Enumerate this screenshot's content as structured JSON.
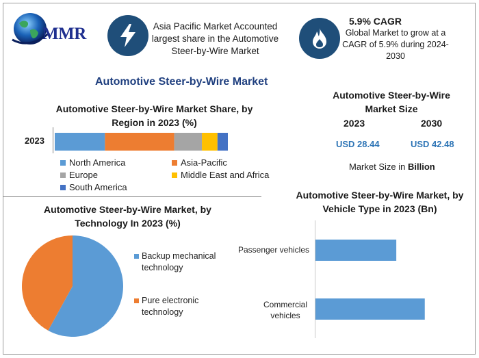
{
  "brand": {
    "name": "MMR"
  },
  "highlights": {
    "region": "Asia Pacific Market Accounted largest share in the Automotive Steer-by-Wire Market",
    "cagr_title": "5.9% CAGR",
    "cagr_text": "Global Market to grow at a CAGR of 5.9% during 2024-2030"
  },
  "main_title": "Automotive Steer-by-Wire Market",
  "market_size": {
    "title": "Automotive Steer-by-Wire Market Size",
    "year1": "2023",
    "year2": "2030",
    "value1": "USD 28.44",
    "value2": "USD 42.48",
    "unit_prefix": "Market Size in ",
    "unit_bold": "Billion"
  },
  "colors": {
    "north_america": "#5b9bd5",
    "asia_pacific": "#ed7d31",
    "europe": "#a5a5a5",
    "middle_east_africa": "#ffc000",
    "south_america": "#4472c4",
    "icon_bg": "#1f4e79",
    "title_blue": "#1f3f7f"
  },
  "chart_data": [
    {
      "type": "bar",
      "orientation": "horizontal",
      "stacked": true,
      "title": "Automotive Steer-by-Wire Market Share, by Region in 2023 (%)",
      "categories": [
        "2023"
      ],
      "series": [
        {
          "name": "North America",
          "values": [
            29
          ],
          "color": "#5b9bd5"
        },
        {
          "name": "Asia-Pacific",
          "values": [
            40
          ],
          "color": "#ed7d31"
        },
        {
          "name": "Europe",
          "values": [
            16
          ],
          "color": "#a5a5a5"
        },
        {
          "name": "Middle East and Africa",
          "values": [
            9
          ],
          "color": "#ffc000"
        },
        {
          "name": "South America",
          "values": [
            6
          ],
          "color": "#4472c4"
        }
      ],
      "xlim": [
        0,
        100
      ],
      "legend": "bottom"
    },
    {
      "type": "pie",
      "title": "Automotive Steer-by-Wire Market, by Technology In 2023 (%)",
      "labels": [
        "Backup mechanical technology",
        "Pure electronic technology"
      ],
      "values": [
        58,
        42
      ],
      "colors": [
        "#5b9bd5",
        "#ed7d31"
      ],
      "legend": "right"
    },
    {
      "type": "bar",
      "orientation": "horizontal",
      "title": "Automotive Steer-by-Wire Market, by Vehicle Type in 2023 (Bn)",
      "categories": [
        "Passenger vehicles",
        "Commercial vehicles"
      ],
      "values": [
        10.5,
        14.2
      ],
      "xlim": [
        0,
        20
      ],
      "color": "#5b9bd5"
    }
  ]
}
